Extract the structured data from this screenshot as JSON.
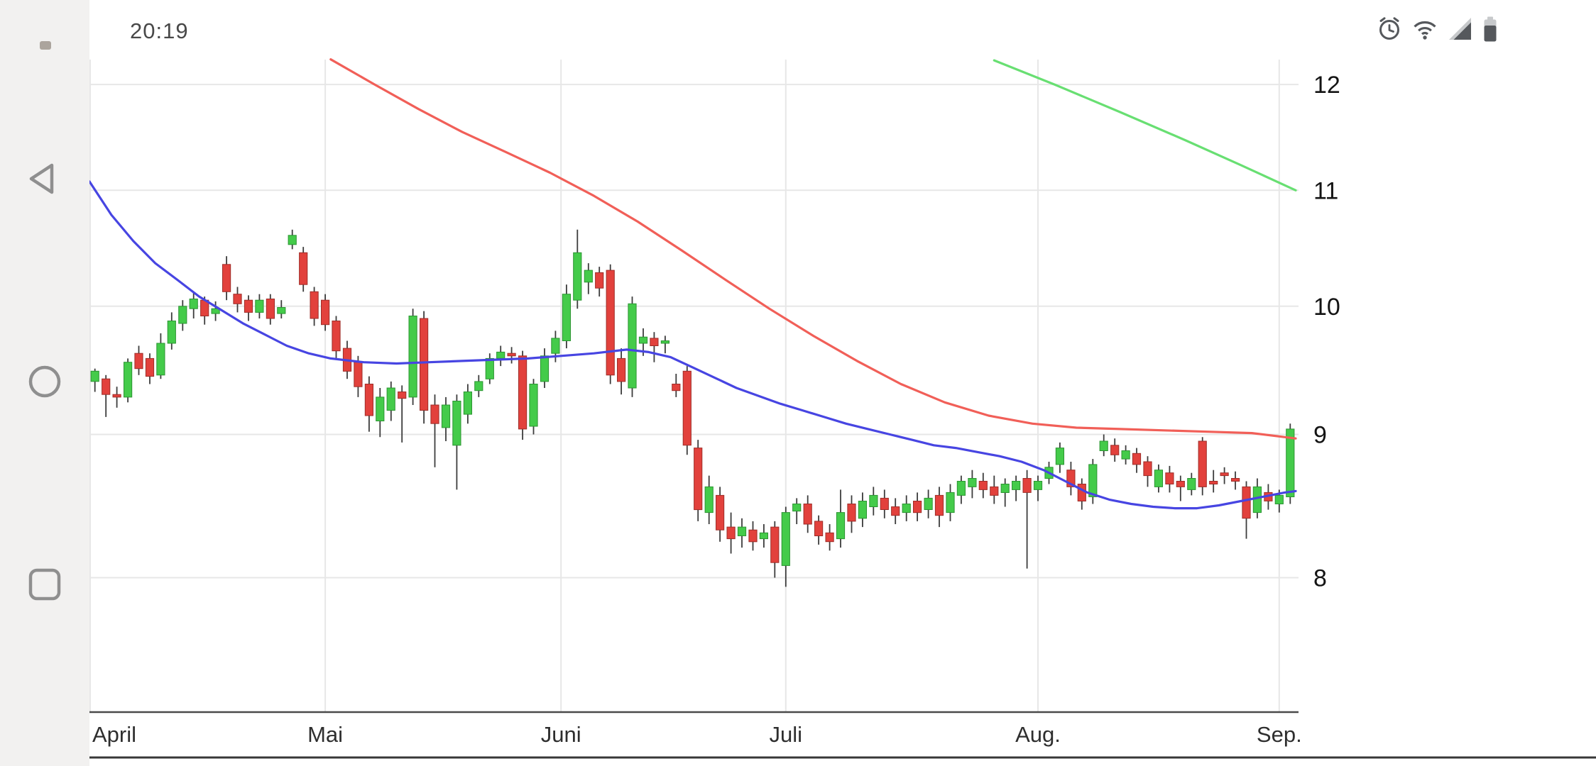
{
  "status_bar": {
    "time": "20:19",
    "icons": [
      "alarm",
      "wifi",
      "signal",
      "battery"
    ]
  },
  "nav_bar": {
    "buttons": [
      "back",
      "home",
      "recents"
    ]
  },
  "chart_data": {
    "type": "candlestick",
    "title": "",
    "xlabel": "",
    "ylabel": "",
    "grid": true,
    "legend": "none",
    "y_axis": {
      "position": "right",
      "scale": "log",
      "ticks": [
        12,
        11,
        10,
        9,
        8
      ],
      "range": [
        7.9,
        12.3
      ]
    },
    "x_axis": {
      "months": [
        {
          "label": "April",
          "boundary": 0
        },
        {
          "label": "Mai",
          "boundary": 21.5
        },
        {
          "label": "Juni",
          "boundary": 43
        },
        {
          "label": "Juli",
          "boundary": 63.5
        },
        {
          "label": "Aug.",
          "boundary": 86.5
        },
        {
          "label": "Sep.",
          "boundary": 108.5
        }
      ]
    },
    "colors": {
      "up": "#44cb4a",
      "down": "#e2413c",
      "up_border": "#2c9432",
      "down_border": "#9e2d28",
      "wick": "#3c3c3c",
      "grid": "#e7e7e7",
      "axis": "#4a4a4a",
      "ma_long": "#f15f58",
      "ma_short": "#4745e2",
      "trend": "#68df72"
    },
    "candles": [
      [
        9.4,
        9.5,
        9.32,
        9.48
      ],
      [
        9.42,
        9.45,
        9.13,
        9.3
      ],
      [
        9.3,
        9.36,
        9.2,
        9.28
      ],
      [
        9.28,
        9.58,
        9.24,
        9.55
      ],
      [
        9.62,
        9.68,
        9.45,
        9.5
      ],
      [
        9.58,
        9.62,
        9.38,
        9.44
      ],
      [
        9.45,
        9.78,
        9.42,
        9.7
      ],
      [
        9.7,
        9.95,
        9.65,
        9.88
      ],
      [
        9.86,
        10.05,
        9.8,
        10.0
      ],
      [
        9.98,
        10.12,
        9.9,
        10.06
      ],
      [
        10.05,
        10.08,
        9.85,
        9.92
      ],
      [
        9.94,
        10.04,
        9.88,
        9.98
      ],
      [
        10.35,
        10.42,
        10.05,
        10.12
      ],
      [
        10.1,
        10.16,
        9.95,
        10.02
      ],
      [
        10.05,
        10.09,
        9.88,
        9.95
      ],
      [
        9.95,
        10.1,
        9.9,
        10.05
      ],
      [
        10.06,
        10.1,
        9.85,
        9.9
      ],
      [
        9.94,
        10.05,
        9.9,
        9.99
      ],
      [
        10.52,
        10.65,
        10.48,
        10.6
      ],
      [
        10.45,
        10.5,
        10.12,
        10.18
      ],
      [
        10.12,
        10.16,
        9.84,
        9.9
      ],
      [
        10.05,
        10.1,
        9.8,
        9.85
      ],
      [
        9.88,
        9.92,
        9.58,
        9.64
      ],
      [
        9.66,
        9.72,
        9.42,
        9.48
      ],
      [
        9.55,
        9.6,
        9.28,
        9.36
      ],
      [
        9.38,
        9.44,
        9.02,
        9.14
      ],
      [
        9.1,
        9.35,
        8.98,
        9.28
      ],
      [
        9.18,
        9.4,
        9.1,
        9.35
      ],
      [
        9.32,
        9.37,
        8.94,
        9.27
      ],
      [
        9.28,
        9.98,
        9.22,
        9.92
      ],
      [
        9.9,
        9.96,
        9.08,
        9.18
      ],
      [
        9.22,
        9.3,
        8.76,
        9.08
      ],
      [
        9.05,
        9.28,
        8.95,
        9.22
      ],
      [
        8.92,
        9.3,
        8.6,
        9.25
      ],
      [
        9.15,
        9.38,
        9.08,
        9.32
      ],
      [
        9.33,
        9.45,
        9.28,
        9.4
      ],
      [
        9.42,
        9.62,
        9.38,
        9.58
      ],
      [
        9.58,
        9.68,
        9.52,
        9.63
      ],
      [
        9.62,
        9.67,
        9.54,
        9.6
      ],
      [
        9.6,
        9.64,
        8.96,
        9.04
      ],
      [
        9.06,
        9.42,
        9.0,
        9.38
      ],
      [
        9.4,
        9.66,
        9.35,
        9.6
      ],
      [
        9.62,
        9.8,
        9.55,
        9.74
      ],
      [
        9.72,
        10.18,
        9.66,
        10.1
      ],
      [
        10.05,
        10.65,
        9.98,
        10.45
      ],
      [
        10.2,
        10.36,
        10.1,
        10.3
      ],
      [
        10.28,
        10.33,
        10.08,
        10.15
      ],
      [
        10.3,
        10.35,
        9.38,
        9.45
      ],
      [
        9.58,
        9.66,
        9.3,
        9.4
      ],
      [
        9.35,
        10.08,
        9.28,
        10.02
      ],
      [
        9.7,
        9.82,
        9.6,
        9.75
      ],
      [
        9.74,
        9.79,
        9.55,
        9.68
      ],
      [
        9.7,
        9.76,
        9.62,
        9.72
      ],
      [
        9.38,
        9.46,
        9.28,
        9.33
      ],
      [
        9.48,
        9.52,
        8.85,
        8.92
      ],
      [
        8.9,
        8.96,
        8.38,
        8.46
      ],
      [
        8.44,
        8.7,
        8.36,
        8.62
      ],
      [
        8.56,
        8.62,
        8.24,
        8.32
      ],
      [
        8.34,
        8.44,
        8.16,
        8.26
      ],
      [
        8.28,
        8.4,
        8.2,
        8.34
      ],
      [
        8.32,
        8.38,
        8.18,
        8.24
      ],
      [
        8.26,
        8.36,
        8.2,
        8.3
      ],
      [
        8.34,
        8.38,
        8.0,
        8.1
      ],
      [
        8.08,
        8.48,
        7.94,
        8.44
      ],
      [
        8.45,
        8.54,
        8.36,
        8.5
      ],
      [
        8.5,
        8.56,
        8.3,
        8.36
      ],
      [
        8.38,
        8.42,
        8.22,
        8.28
      ],
      [
        8.3,
        8.36,
        8.18,
        8.24
      ],
      [
        8.26,
        8.6,
        8.2,
        8.44
      ],
      [
        8.5,
        8.56,
        8.3,
        8.38
      ],
      [
        8.4,
        8.58,
        8.34,
        8.52
      ],
      [
        8.48,
        8.62,
        8.42,
        8.56
      ],
      [
        8.54,
        8.6,
        8.4,
        8.46
      ],
      [
        8.48,
        8.54,
        8.36,
        8.42
      ],
      [
        8.44,
        8.56,
        8.38,
        8.5
      ],
      [
        8.52,
        8.58,
        8.38,
        8.44
      ],
      [
        8.46,
        8.6,
        8.4,
        8.54
      ],
      [
        8.56,
        8.62,
        8.34,
        8.42
      ],
      [
        8.44,
        8.64,
        8.38,
        8.58
      ],
      [
        8.56,
        8.7,
        8.5,
        8.66
      ],
      [
        8.62,
        8.74,
        8.54,
        8.68
      ],
      [
        8.66,
        8.72,
        8.54,
        8.6
      ],
      [
        8.62,
        8.7,
        8.5,
        8.56
      ],
      [
        8.58,
        8.68,
        8.48,
        8.64
      ],
      [
        8.6,
        8.7,
        8.52,
        8.66
      ],
      [
        8.68,
        8.74,
        8.06,
        8.58
      ],
      [
        8.6,
        8.7,
        8.52,
        8.66
      ],
      [
        8.68,
        8.8,
        8.64,
        8.76
      ],
      [
        8.78,
        8.94,
        8.72,
        8.9
      ],
      [
        8.74,
        8.8,
        8.56,
        8.62
      ],
      [
        8.64,
        8.68,
        8.46,
        8.52
      ],
      [
        8.55,
        8.82,
        8.5,
        8.78
      ],
      [
        8.88,
        9.0,
        8.84,
        8.95
      ],
      [
        8.92,
        8.97,
        8.8,
        8.85
      ],
      [
        8.82,
        8.92,
        8.78,
        8.88
      ],
      [
        8.86,
        8.9,
        8.72,
        8.78
      ],
      [
        8.8,
        8.84,
        8.62,
        8.7
      ],
      [
        8.62,
        8.78,
        8.58,
        8.74
      ],
      [
        8.72,
        8.77,
        8.58,
        8.64
      ],
      [
        8.66,
        8.7,
        8.52,
        8.62
      ],
      [
        8.6,
        8.72,
        8.56,
        8.68
      ],
      [
        8.95,
        8.98,
        8.56,
        8.62
      ],
      [
        8.66,
        8.74,
        8.58,
        8.64
      ],
      [
        8.72,
        8.76,
        8.64,
        8.7
      ],
      [
        8.68,
        8.73,
        8.6,
        8.66
      ],
      [
        8.62,
        8.66,
        8.26,
        8.4
      ],
      [
        8.44,
        8.68,
        8.4,
        8.62
      ],
      [
        8.58,
        8.64,
        8.46,
        8.52
      ],
      [
        8.5,
        8.6,
        8.44,
        8.56
      ],
      [
        8.55,
        9.08,
        8.5,
        9.04
      ]
    ],
    "overlays": [
      {
        "name": "ma-long-red-line",
        "color": "#f15f58",
        "points": [
          [
            22,
            12.25
          ],
          [
            26,
            12.0
          ],
          [
            30,
            11.76
          ],
          [
            34,
            11.54
          ],
          [
            38,
            11.35
          ],
          [
            42,
            11.16
          ],
          [
            46,
            10.95
          ],
          [
            50,
            10.72
          ],
          [
            54,
            10.47
          ],
          [
            58,
            10.22
          ],
          [
            62,
            9.98
          ],
          [
            66,
            9.76
          ],
          [
            70,
            9.56
          ],
          [
            74,
            9.38
          ],
          [
            78,
            9.24
          ],
          [
            82,
            9.14
          ],
          [
            86,
            9.08
          ],
          [
            90,
            9.05
          ],
          [
            94,
            9.04
          ],
          [
            98,
            9.03
          ],
          [
            102,
            9.02
          ],
          [
            106,
            9.01
          ],
          [
            110,
            8.97
          ]
        ]
      },
      {
        "name": "ma-short-blue-line",
        "color": "#4745e2",
        "points": [
          [
            0,
            11.08
          ],
          [
            2,
            10.78
          ],
          [
            4,
            10.55
          ],
          [
            6,
            10.36
          ],
          [
            8,
            10.22
          ],
          [
            10,
            10.08
          ],
          [
            12,
            9.97
          ],
          [
            14,
            9.86
          ],
          [
            16,
            9.77
          ],
          [
            18,
            9.68
          ],
          [
            20,
            9.62
          ],
          [
            22,
            9.58
          ],
          [
            25,
            9.55
          ],
          [
            28,
            9.54
          ],
          [
            31,
            9.55
          ],
          [
            34,
            9.56
          ],
          [
            37,
            9.57
          ],
          [
            40,
            9.58
          ],
          [
            43,
            9.6
          ],
          [
            46,
            9.62
          ],
          [
            49,
            9.65
          ],
          [
            51,
            9.63
          ],
          [
            53,
            9.59
          ],
          [
            55,
            9.51
          ],
          [
            57,
            9.43
          ],
          [
            59,
            9.35
          ],
          [
            61,
            9.29
          ],
          [
            63,
            9.23
          ],
          [
            65,
            9.18
          ],
          [
            67,
            9.13
          ],
          [
            69,
            9.08
          ],
          [
            71,
            9.04
          ],
          [
            73,
            9.0
          ],
          [
            75,
            8.96
          ],
          [
            77,
            8.92
          ],
          [
            79,
            8.9
          ],
          [
            81,
            8.87
          ],
          [
            83,
            8.84
          ],
          [
            85,
            8.8
          ],
          [
            87,
            8.74
          ],
          [
            89,
            8.66
          ],
          [
            91,
            8.58
          ],
          [
            93,
            8.53
          ],
          [
            95,
            8.5
          ],
          [
            97,
            8.48
          ],
          [
            99,
            8.47
          ],
          [
            101,
            8.47
          ],
          [
            103,
            8.49
          ],
          [
            105,
            8.52
          ],
          [
            107,
            8.55
          ],
          [
            109,
            8.58
          ],
          [
            110,
            8.59
          ]
        ]
      },
      {
        "name": "trend-green-line",
        "color": "#68df72",
        "points": [
          [
            82.5,
            12.24
          ],
          [
            88,
            12.0
          ],
          [
            94,
            11.73
          ],
          [
            100,
            11.46
          ],
          [
            105,
            11.23
          ],
          [
            110,
            11.0
          ]
        ]
      }
    ]
  }
}
